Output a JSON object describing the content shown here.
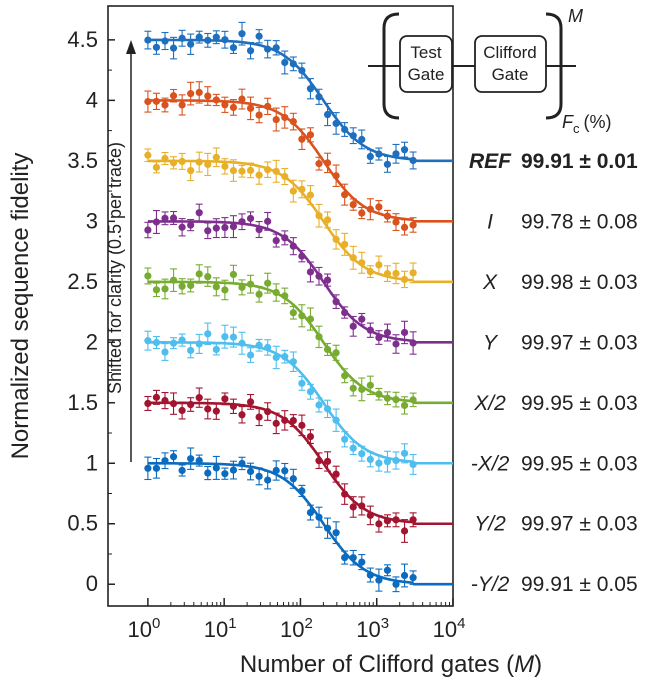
{
  "chart_data": {
    "type": "scatter",
    "title": "",
    "xlabel": "Number of Clifford gates",
    "xlabel_var": "M",
    "ylabel": "Normalized sequence fidelity",
    "xscale": "log",
    "xlim": [
      0.3,
      10000
    ],
    "ylim": [
      -0.18,
      4.78
    ],
    "x_ticks": [
      {
        "mant": "10",
        "exp": "0"
      },
      {
        "mant": "10",
        "exp": "1"
      },
      {
        "mant": "10",
        "exp": "2"
      },
      {
        "mant": "10",
        "exp": "3"
      },
      {
        "mant": "10",
        "exp": "4"
      }
    ],
    "y_ticks": [
      "0",
      "0.5",
      "1",
      "1.5",
      "2",
      "2.5",
      "3",
      "3.5",
      "4",
      "4.5"
    ],
    "shift_note": "Shifted for clarity (0.5 per trace)",
    "inset": {
      "gate1_line1": "Test",
      "gate1_line2": "Gate",
      "gate2_line1": "Clifford",
      "gate2_line2": "Gate",
      "exponent": "M",
      "fc_symbol": "F",
      "fc_sub": "c",
      "fc_unit": "(%)"
    },
    "series": [
      {
        "name": "REF",
        "fidelity": "99.91 ± 0.01",
        "offset": 3.5,
        "color": "#1f6fbf",
        "bold": true
      },
      {
        "name": "I",
        "fidelity": "99.78 ± 0.08",
        "offset": 3.0,
        "color": "#d9531e"
      },
      {
        "name": "X",
        "fidelity": "99.98 ± 0.03",
        "offset": 2.5,
        "color": "#e8b028"
      },
      {
        "name": "Y",
        "fidelity": "99.97 ± 0.03",
        "offset": 2.0,
        "color": "#7e2f8e"
      },
      {
        "name": "X/2",
        "fidelity": "99.95 ± 0.03",
        "offset": 1.5,
        "color": "#77ac30"
      },
      {
        "name": "-X/2",
        "fidelity": "99.95 ± 0.03",
        "offset": 1.0,
        "color": "#4dbeee"
      },
      {
        "name": "Y/2",
        "fidelity": "99.97 ± 0.03",
        "offset": 0.5,
        "color": "#a2142f"
      },
      {
        "name": "-Y/2",
        "fidelity": "99.91 ± 0.05",
        "offset": 0.0,
        "color": "#0b6bbf"
      }
    ],
    "decay_model": {
      "form": "offset + 1 / (1 + (M / M0)^1.6)",
      "M0": 200,
      "amplitude": 1.0
    },
    "M_sample_range": [
      1,
      3000
    ],
    "points_per_series": 32
  }
}
